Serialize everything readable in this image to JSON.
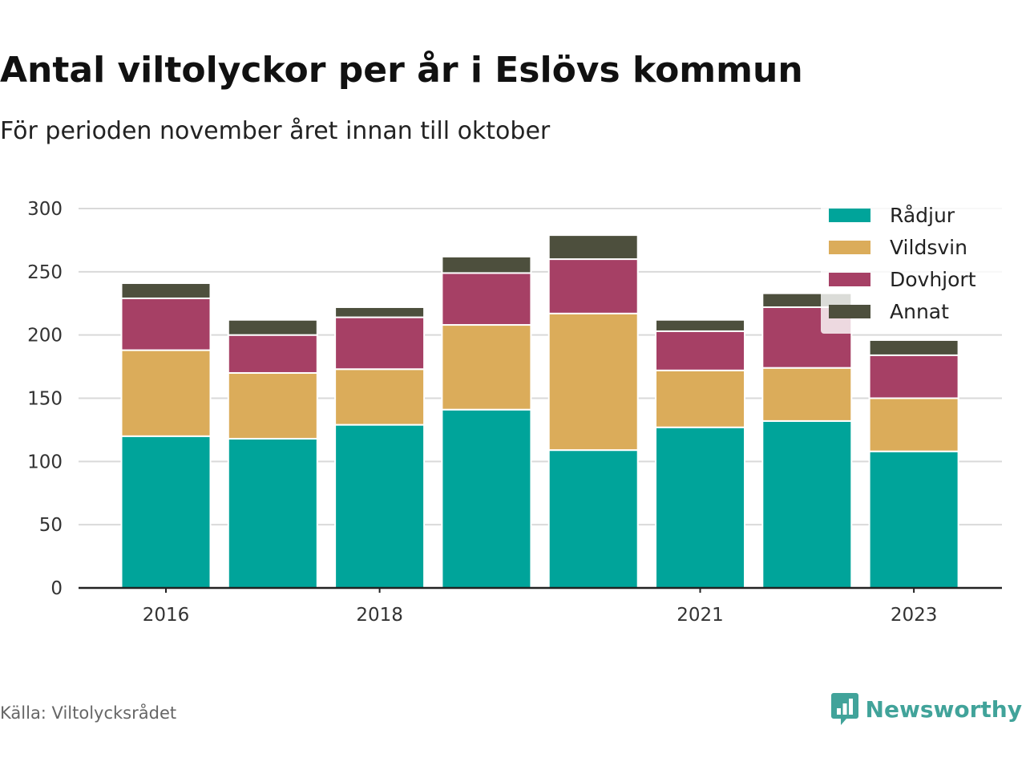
{
  "header": {
    "title": "Antal viltolyckor per år i Eslövs kommun",
    "subtitle": "För perioden november året innan till oktober"
  },
  "footer": {
    "source": "Källa: Viltolycksrådet",
    "brand": "Newsworthy"
  },
  "colors": {
    "radjur": "#00a49a",
    "vildsvin": "#dbac5a",
    "dovhjort": "#a64065",
    "annat": "#4d4f3d",
    "brand": "#41a39a",
    "grid": "#d9d9d9",
    "axis": "#222222"
  },
  "icons": {
    "brand": "bar-chart-speech-bubble-icon"
  },
  "chart_data": {
    "type": "bar",
    "stacked": true,
    "categories": [
      "2016",
      "2017",
      "2018",
      "2019",
      "2020",
      "2021",
      "2022",
      "2023"
    ],
    "x_tick_labels": [
      "2016",
      "",
      "2018",
      "",
      "",
      "2021",
      "",
      "2023"
    ],
    "series": [
      {
        "name": "Rådjur",
        "color": "#00a49a",
        "values": [
          120,
          118,
          129,
          141,
          109,
          127,
          132,
          108
        ]
      },
      {
        "name": "Vildsvin",
        "color": "#dbac5a",
        "values": [
          68,
          52,
          44,
          67,
          108,
          45,
          42,
          42
        ]
      },
      {
        "name": "Dovhjort",
        "color": "#a64065",
        "values": [
          41,
          30,
          41,
          41,
          43,
          31,
          48,
          34
        ]
      },
      {
        "name": "Annat",
        "color": "#4d4f3d",
        "values": [
          12,
          12,
          8,
          13,
          19,
          9,
          11,
          12
        ]
      }
    ],
    "ylim": [
      0,
      300
    ],
    "yticks": [
      0,
      50,
      100,
      150,
      200,
      250,
      300
    ],
    "grid": true,
    "legend": "top-right",
    "xlabel": "",
    "ylabel": ""
  }
}
